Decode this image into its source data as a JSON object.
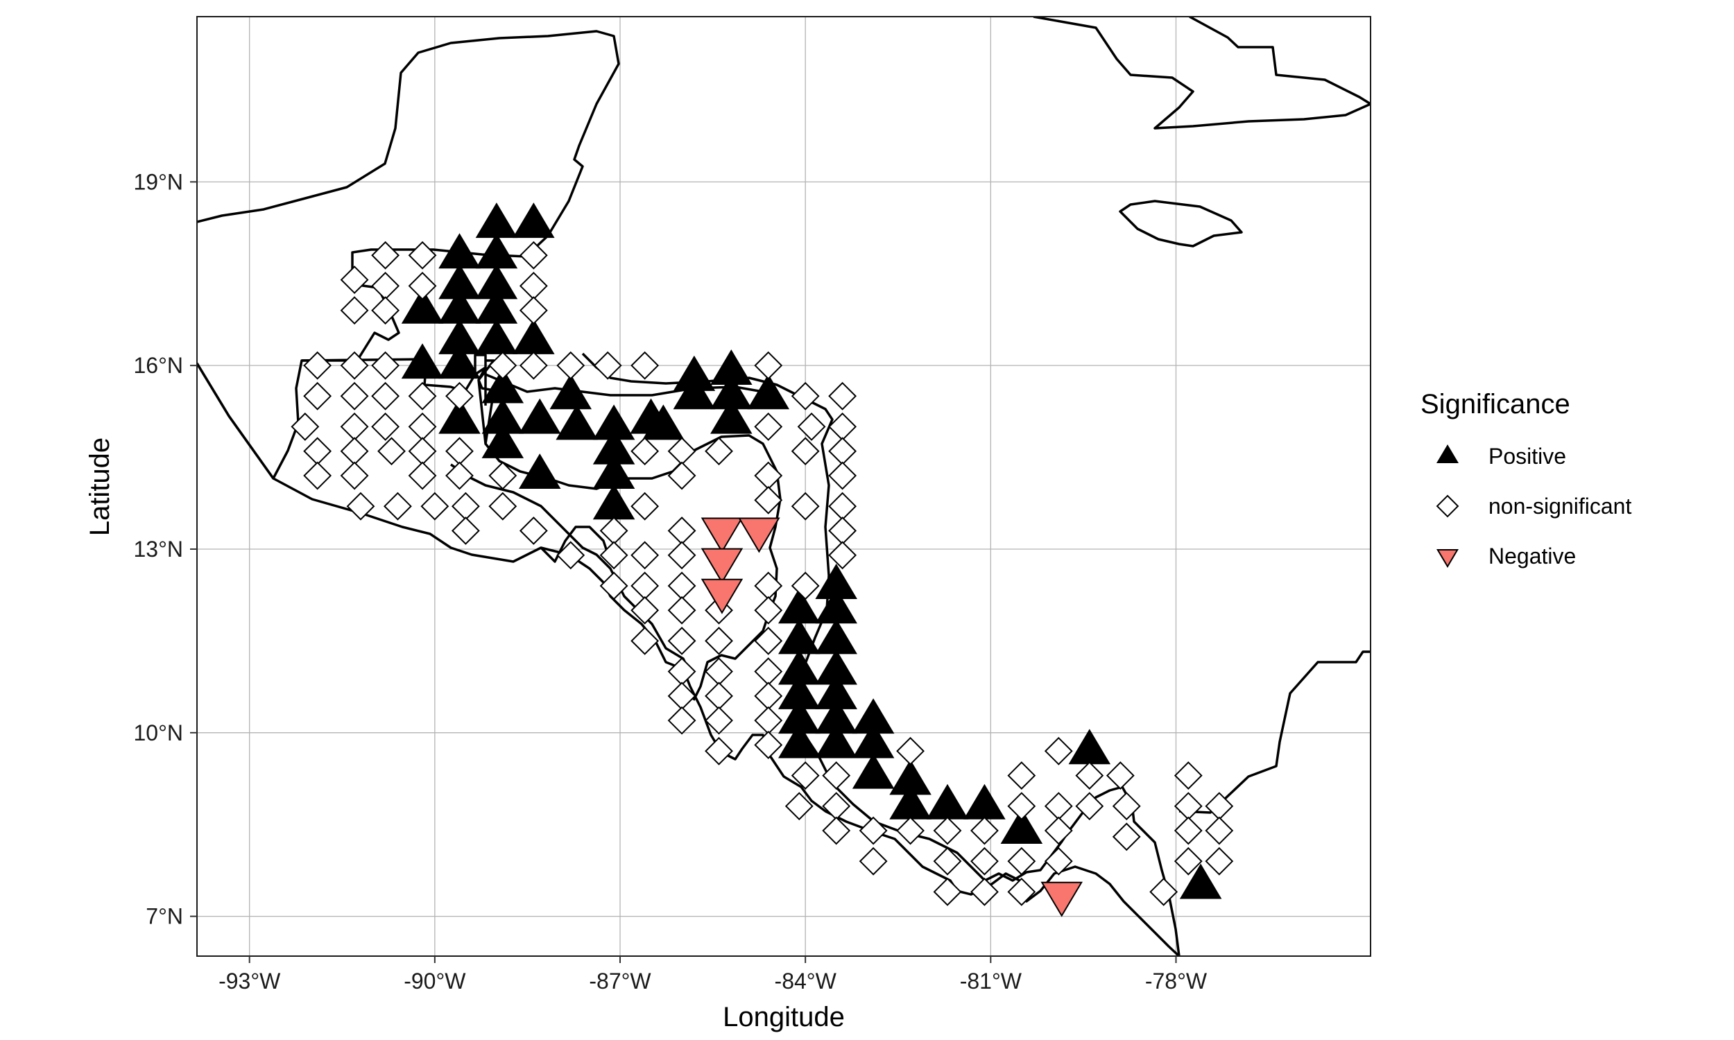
{
  "chart_data": {
    "type": "scatter",
    "subtype": "map",
    "title": "",
    "xlabel": "Longitude",
    "ylabel": "Latitude",
    "xlim": [
      -93.85,
      -74.85
    ],
    "ylim": [
      6.35,
      21.7
    ],
    "x_ticks": [
      -93,
      -90,
      -87,
      -84,
      -81,
      -78
    ],
    "x_tick_labels": [
      "-93°W",
      "-90°W",
      "-87°W",
      "-84°W",
      "-81°W",
      "-78°W"
    ],
    "y_ticks": [
      7,
      10,
      13,
      16,
      19
    ],
    "y_tick_labels": [
      "7°N",
      "10°N",
      "13°N",
      "16°N",
      "19°N"
    ],
    "grid": true,
    "legend": {
      "title": "Significance",
      "position": "right",
      "entries": [
        "Positive",
        "non-significant",
        "Negative"
      ]
    },
    "colors": {
      "Positive": "#000000",
      "non-significant": "#ffffff",
      "Negative": "#f8766d"
    },
    "series": [
      {
        "name": "Positive",
        "marker": "triangle-up",
        "points": [
          [
            -89.0,
            18.3
          ],
          [
            -88.4,
            18.3
          ],
          [
            -89.6,
            17.8
          ],
          [
            -89.0,
            17.8
          ],
          [
            -89.6,
            17.3
          ],
          [
            -89.0,
            17.3
          ],
          [
            -90.2,
            16.9
          ],
          [
            -89.6,
            16.9
          ],
          [
            -89.0,
            16.9
          ],
          [
            -89.6,
            16.4
          ],
          [
            -89.0,
            16.4
          ],
          [
            -88.4,
            16.4
          ],
          [
            -90.2,
            16.0
          ],
          [
            -89.6,
            16.0
          ],
          [
            -88.9,
            15.6
          ],
          [
            -87.8,
            15.5
          ],
          [
            -85.8,
            15.8
          ],
          [
            -85.2,
            15.9
          ],
          [
            -85.8,
            15.5
          ],
          [
            -85.2,
            15.5
          ],
          [
            -84.6,
            15.5
          ],
          [
            -89.6,
            15.1
          ],
          [
            -88.9,
            15.1
          ],
          [
            -88.3,
            15.1
          ],
          [
            -87.7,
            15.0
          ],
          [
            -87.1,
            15.0
          ],
          [
            -86.5,
            15.1
          ],
          [
            -86.3,
            15.0
          ],
          [
            -85.2,
            15.1
          ],
          [
            -88.9,
            14.7
          ],
          [
            -87.1,
            14.6
          ],
          [
            -88.3,
            14.2
          ],
          [
            -87.1,
            14.2
          ],
          [
            -87.1,
            13.7
          ],
          [
            -83.5,
            12.4
          ],
          [
            -84.1,
            12.0
          ],
          [
            -83.5,
            12.0
          ],
          [
            -84.1,
            11.5
          ],
          [
            -83.5,
            11.5
          ],
          [
            -84.1,
            11.0
          ],
          [
            -83.5,
            11.0
          ],
          [
            -84.1,
            10.6
          ],
          [
            -83.5,
            10.6
          ],
          [
            -84.1,
            10.2
          ],
          [
            -83.5,
            10.2
          ],
          [
            -82.9,
            10.2
          ],
          [
            -84.1,
            9.8
          ],
          [
            -83.5,
            9.8
          ],
          [
            -82.9,
            9.8
          ],
          [
            -82.9,
            9.3
          ],
          [
            -82.3,
            9.2
          ],
          [
            -82.3,
            8.8
          ],
          [
            -81.7,
            8.8
          ],
          [
            -81.1,
            8.8
          ],
          [
            -80.5,
            8.4
          ],
          [
            -79.4,
            9.7
          ],
          [
            -77.6,
            7.5
          ]
        ]
      },
      {
        "name": "non-significant",
        "marker": "diamond",
        "points": [
          [
            -91.3,
            17.4
          ],
          [
            -90.8,
            17.8
          ],
          [
            -90.2,
            17.8
          ],
          [
            -90.8,
            17.3
          ],
          [
            -90.2,
            17.3
          ],
          [
            -91.3,
            16.9
          ],
          [
            -90.8,
            16.9
          ],
          [
            -88.4,
            17.8
          ],
          [
            -88.4,
            17.3
          ],
          [
            -88.4,
            16.9
          ],
          [
            -91.9,
            16.0
          ],
          [
            -91.3,
            16.0
          ],
          [
            -90.8,
            16.0
          ],
          [
            -88.9,
            16.0
          ],
          [
            -88.4,
            16.0
          ],
          [
            -87.8,
            16.0
          ],
          [
            -87.2,
            16.0
          ],
          [
            -86.6,
            16.0
          ],
          [
            -84.6,
            16.0
          ],
          [
            -91.9,
            15.5
          ],
          [
            -91.3,
            15.5
          ],
          [
            -90.8,
            15.5
          ],
          [
            -90.2,
            15.5
          ],
          [
            -89.6,
            15.5
          ],
          [
            -84.0,
            15.5
          ],
          [
            -83.4,
            15.5
          ],
          [
            -92.1,
            15.0
          ],
          [
            -91.3,
            15.0
          ],
          [
            -90.8,
            15.0
          ],
          [
            -90.2,
            15.0
          ],
          [
            -84.6,
            15.0
          ],
          [
            -83.9,
            15.0
          ],
          [
            -83.4,
            15.0
          ],
          [
            -91.9,
            14.6
          ],
          [
            -91.3,
            14.6
          ],
          [
            -90.7,
            14.6
          ],
          [
            -90.2,
            14.6
          ],
          [
            -89.6,
            14.6
          ],
          [
            -86.6,
            14.6
          ],
          [
            -86.0,
            14.6
          ],
          [
            -85.4,
            14.6
          ],
          [
            -84.0,
            14.6
          ],
          [
            -83.4,
            14.6
          ],
          [
            -91.9,
            14.2
          ],
          [
            -91.3,
            14.2
          ],
          [
            -90.2,
            14.2
          ],
          [
            -89.6,
            14.2
          ],
          [
            -88.9,
            14.2
          ],
          [
            -86.0,
            14.2
          ],
          [
            -84.6,
            14.2
          ],
          [
            -83.4,
            14.2
          ],
          [
            -91.2,
            13.7
          ],
          [
            -90.6,
            13.7
          ],
          [
            -90.0,
            13.7
          ],
          [
            -89.5,
            13.7
          ],
          [
            -88.9,
            13.7
          ],
          [
            -86.6,
            13.7
          ],
          [
            -84.6,
            13.8
          ],
          [
            -84.0,
            13.7
          ],
          [
            -83.4,
            13.7
          ],
          [
            -89.5,
            13.3
          ],
          [
            -88.4,
            13.3
          ],
          [
            -87.1,
            13.3
          ],
          [
            -86.0,
            13.3
          ],
          [
            -83.4,
            13.3
          ],
          [
            -87.8,
            12.9
          ],
          [
            -87.1,
            12.9
          ],
          [
            -86.6,
            12.9
          ],
          [
            -86.0,
            12.9
          ],
          [
            -83.4,
            12.9
          ],
          [
            -86.6,
            12.4
          ],
          [
            -86.0,
            12.4
          ],
          [
            -84.6,
            12.4
          ],
          [
            -84.0,
            12.4
          ],
          [
            -87.1,
            12.4
          ],
          [
            -86.6,
            12.0
          ],
          [
            -86.0,
            12.0
          ],
          [
            -85.4,
            12.0
          ],
          [
            -84.6,
            12.0
          ],
          [
            -86.6,
            11.5
          ],
          [
            -86.0,
            11.5
          ],
          [
            -85.4,
            11.5
          ],
          [
            -84.6,
            11.5
          ],
          [
            -86.0,
            11.0
          ],
          [
            -85.4,
            11.0
          ],
          [
            -84.6,
            11.0
          ],
          [
            -86.0,
            10.6
          ],
          [
            -85.4,
            10.6
          ],
          [
            -84.6,
            10.6
          ],
          [
            -86.0,
            10.2
          ],
          [
            -85.4,
            10.2
          ],
          [
            -84.6,
            10.2
          ],
          [
            -85.4,
            9.7
          ],
          [
            -84.6,
            9.8
          ],
          [
            -84.0,
            9.3
          ],
          [
            -83.5,
            9.3
          ],
          [
            -82.3,
            9.7
          ],
          [
            -80.5,
            9.3
          ],
          [
            -79.9,
            9.7
          ],
          [
            -79.4,
            9.3
          ],
          [
            -78.9,
            9.3
          ],
          [
            -77.8,
            9.3
          ],
          [
            -84.1,
            8.8
          ],
          [
            -83.5,
            8.8
          ],
          [
            -80.5,
            8.8
          ],
          [
            -79.9,
            8.8
          ],
          [
            -79.4,
            8.8
          ],
          [
            -78.8,
            8.8
          ],
          [
            -77.8,
            8.8
          ],
          [
            -77.3,
            8.8
          ],
          [
            -83.5,
            8.4
          ],
          [
            -82.9,
            8.4
          ],
          [
            -82.3,
            8.4
          ],
          [
            -81.7,
            8.4
          ],
          [
            -81.1,
            8.4
          ],
          [
            -79.9,
            8.4
          ],
          [
            -78.8,
            8.3
          ],
          [
            -77.8,
            8.4
          ],
          [
            -77.3,
            8.4
          ],
          [
            -82.9,
            7.9
          ],
          [
            -81.7,
            7.9
          ],
          [
            -81.1,
            7.9
          ],
          [
            -80.5,
            7.9
          ],
          [
            -79.9,
            7.9
          ],
          [
            -77.8,
            7.9
          ],
          [
            -77.3,
            7.9
          ],
          [
            -81.7,
            7.4
          ],
          [
            -81.1,
            7.4
          ],
          [
            -80.5,
            7.4
          ],
          [
            -78.2,
            7.4
          ]
        ]
      },
      {
        "name": "Negative",
        "marker": "triangle-down",
        "points": [
          [
            -85.35,
            13.3
          ],
          [
            -84.75,
            13.3
          ],
          [
            -85.35,
            12.8
          ],
          [
            -85.35,
            12.3
          ],
          [
            -79.85,
            7.35
          ]
        ]
      }
    ]
  },
  "icons": {
    "Positive": "filled-black-triangle-up",
    "non-significant": "open-diamond",
    "Negative": "red-triangle-down"
  }
}
